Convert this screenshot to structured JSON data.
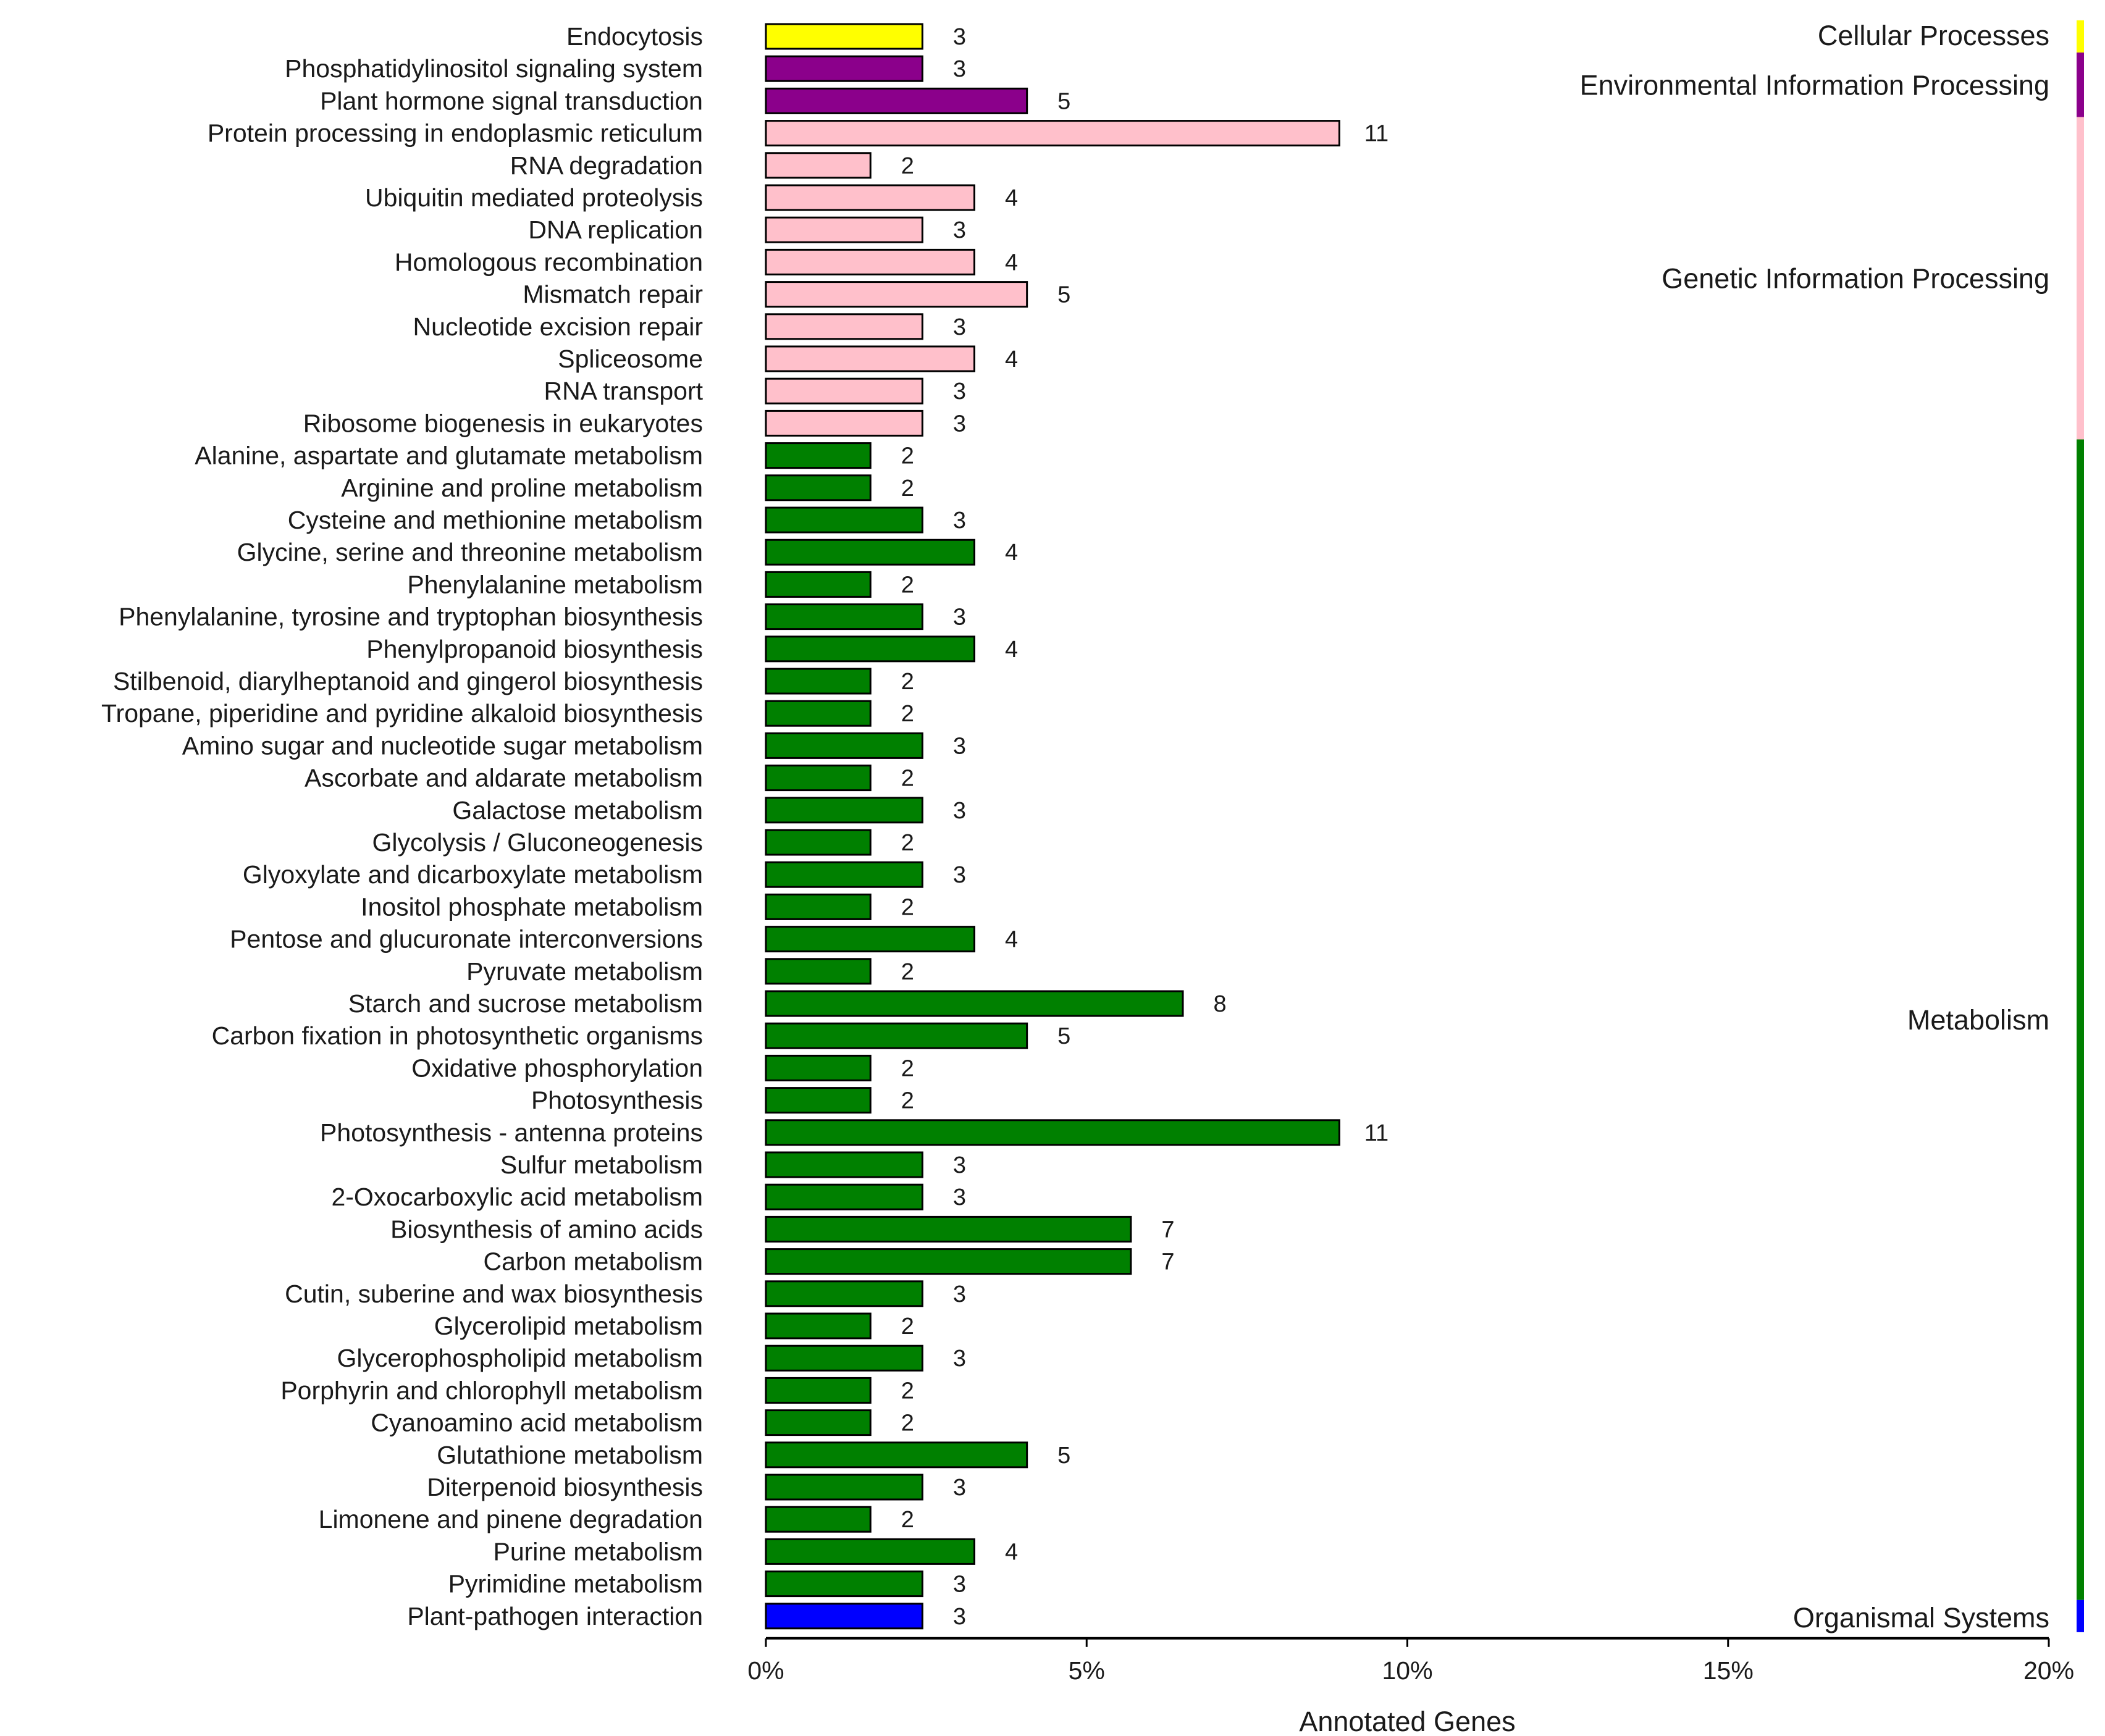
{
  "chart_data": {
    "type": "bar",
    "orientation": "horizontal",
    "xlabel": "Annotated Genes",
    "ylabel": "",
    "xlim": [
      0,
      20
    ],
    "x_ticks": [
      "0%",
      "5%",
      "10%",
      "15%",
      "20%"
    ],
    "x_tick_values": [
      0,
      5,
      10,
      15,
      20
    ],
    "value_unit": "percent of annotated genes",
    "grid": false,
    "groups": [
      {
        "name": "Cellular Processes",
        "color": "#ffff00"
      },
      {
        "name": "Environmental Information Processing",
        "color": "#8b008b"
      },
      {
        "name": "Genetic Information Processing",
        "color": "#ffc0cb"
      },
      {
        "name": "Metabolism",
        "color": "#008000"
      },
      {
        "name": "Organismal Systems",
        "color": "#0000ff"
      }
    ],
    "bars": [
      {
        "category": "Endocytosis",
        "count": 3,
        "percent": 2.44,
        "group": 0
      },
      {
        "category": "Phosphatidylinositol signaling system",
        "count": 3,
        "percent": 2.44,
        "group": 1
      },
      {
        "category": "Plant hormone signal transduction",
        "count": 5,
        "percent": 4.07,
        "group": 1
      },
      {
        "category": "Protein processing in endoplasmic reticulum",
        "count": 11,
        "percent": 8.94,
        "group": 2
      },
      {
        "category": "RNA degradation",
        "count": 2,
        "percent": 1.63,
        "group": 2
      },
      {
        "category": "Ubiquitin mediated proteolysis",
        "count": 4,
        "percent": 3.25,
        "group": 2
      },
      {
        "category": "DNA replication",
        "count": 3,
        "percent": 2.44,
        "group": 2
      },
      {
        "category": "Homologous recombination",
        "count": 4,
        "percent": 3.25,
        "group": 2
      },
      {
        "category": "Mismatch repair",
        "count": 5,
        "percent": 4.07,
        "group": 2
      },
      {
        "category": "Nucleotide excision repair",
        "count": 3,
        "percent": 2.44,
        "group": 2
      },
      {
        "category": "Spliceosome",
        "count": 4,
        "percent": 3.25,
        "group": 2
      },
      {
        "category": "RNA transport",
        "count": 3,
        "percent": 2.44,
        "group": 2
      },
      {
        "category": "Ribosome biogenesis in eukaryotes",
        "count": 3,
        "percent": 2.44,
        "group": 2
      },
      {
        "category": "Alanine, aspartate and glutamate metabolism",
        "count": 2,
        "percent": 1.63,
        "group": 3
      },
      {
        "category": "Arginine and proline metabolism",
        "count": 2,
        "percent": 1.63,
        "group": 3
      },
      {
        "category": "Cysteine and methionine metabolism",
        "count": 3,
        "percent": 2.44,
        "group": 3
      },
      {
        "category": "Glycine, serine and threonine metabolism",
        "count": 4,
        "percent": 3.25,
        "group": 3
      },
      {
        "category": "Phenylalanine metabolism",
        "count": 2,
        "percent": 1.63,
        "group": 3
      },
      {
        "category": "Phenylalanine, tyrosine and tryptophan biosynthesis",
        "count": 3,
        "percent": 2.44,
        "group": 3
      },
      {
        "category": "Phenylpropanoid biosynthesis",
        "count": 4,
        "percent": 3.25,
        "group": 3
      },
      {
        "category": "Stilbenoid, diarylheptanoid and gingerol biosynthesis",
        "count": 2,
        "percent": 1.63,
        "group": 3
      },
      {
        "category": "Tropane, piperidine and pyridine alkaloid biosynthesis",
        "count": 2,
        "percent": 1.63,
        "group": 3
      },
      {
        "category": "Amino sugar and nucleotide sugar metabolism",
        "count": 3,
        "percent": 2.44,
        "group": 3
      },
      {
        "category": "Ascorbate and aldarate metabolism",
        "count": 2,
        "percent": 1.63,
        "group": 3
      },
      {
        "category": "Galactose metabolism",
        "count": 3,
        "percent": 2.44,
        "group": 3
      },
      {
        "category": "Glycolysis / Gluconeogenesis",
        "count": 2,
        "percent": 1.63,
        "group": 3
      },
      {
        "category": "Glyoxylate and dicarboxylate metabolism",
        "count": 3,
        "percent": 2.44,
        "group": 3
      },
      {
        "category": "Inositol phosphate metabolism",
        "count": 2,
        "percent": 1.63,
        "group": 3
      },
      {
        "category": "Pentose and glucuronate interconversions",
        "count": 4,
        "percent": 3.25,
        "group": 3
      },
      {
        "category": "Pyruvate metabolism",
        "count": 2,
        "percent": 1.63,
        "group": 3
      },
      {
        "category": "Starch and sucrose metabolism",
        "count": 8,
        "percent": 6.5,
        "group": 3
      },
      {
        "category": "Carbon fixation in photosynthetic organisms",
        "count": 5,
        "percent": 4.07,
        "group": 3
      },
      {
        "category": "Oxidative phosphorylation",
        "count": 2,
        "percent": 1.63,
        "group": 3
      },
      {
        "category": "Photosynthesis",
        "count": 2,
        "percent": 1.63,
        "group": 3
      },
      {
        "category": "Photosynthesis - antenna proteins",
        "count": 11,
        "percent": 8.94,
        "group": 3
      },
      {
        "category": "Sulfur metabolism",
        "count": 3,
        "percent": 2.44,
        "group": 3
      },
      {
        "category": "2-Oxocarboxylic acid metabolism",
        "count": 3,
        "percent": 2.44,
        "group": 3
      },
      {
        "category": "Biosynthesis of amino acids",
        "count": 7,
        "percent": 5.69,
        "group": 3
      },
      {
        "category": "Carbon metabolism",
        "count": 7,
        "percent": 5.69,
        "group": 3
      },
      {
        "category": "Cutin, suberine and wax biosynthesis",
        "count": 3,
        "percent": 2.44,
        "group": 3
      },
      {
        "category": "Glycerolipid metabolism",
        "count": 2,
        "percent": 1.63,
        "group": 3
      },
      {
        "category": "Glycerophospholipid metabolism",
        "count": 3,
        "percent": 2.44,
        "group": 3
      },
      {
        "category": "Porphyrin and chlorophyll metabolism",
        "count": 2,
        "percent": 1.63,
        "group": 3
      },
      {
        "category": "Cyanoamino acid metabolism",
        "count": 2,
        "percent": 1.63,
        "group": 3
      },
      {
        "category": "Glutathione metabolism",
        "count": 5,
        "percent": 4.07,
        "group": 3
      },
      {
        "category": "Diterpenoid biosynthesis",
        "count": 3,
        "percent": 2.44,
        "group": 3
      },
      {
        "category": "Limonene and pinene degradation",
        "count": 2,
        "percent": 1.63,
        "group": 3
      },
      {
        "category": "Purine metabolism",
        "count": 4,
        "percent": 3.25,
        "group": 3
      },
      {
        "category": "Pyrimidine metabolism",
        "count": 3,
        "percent": 2.44,
        "group": 3
      },
      {
        "category": "Plant-pathogen interaction",
        "count": 3,
        "percent": 2.44,
        "group": 4
      }
    ]
  }
}
